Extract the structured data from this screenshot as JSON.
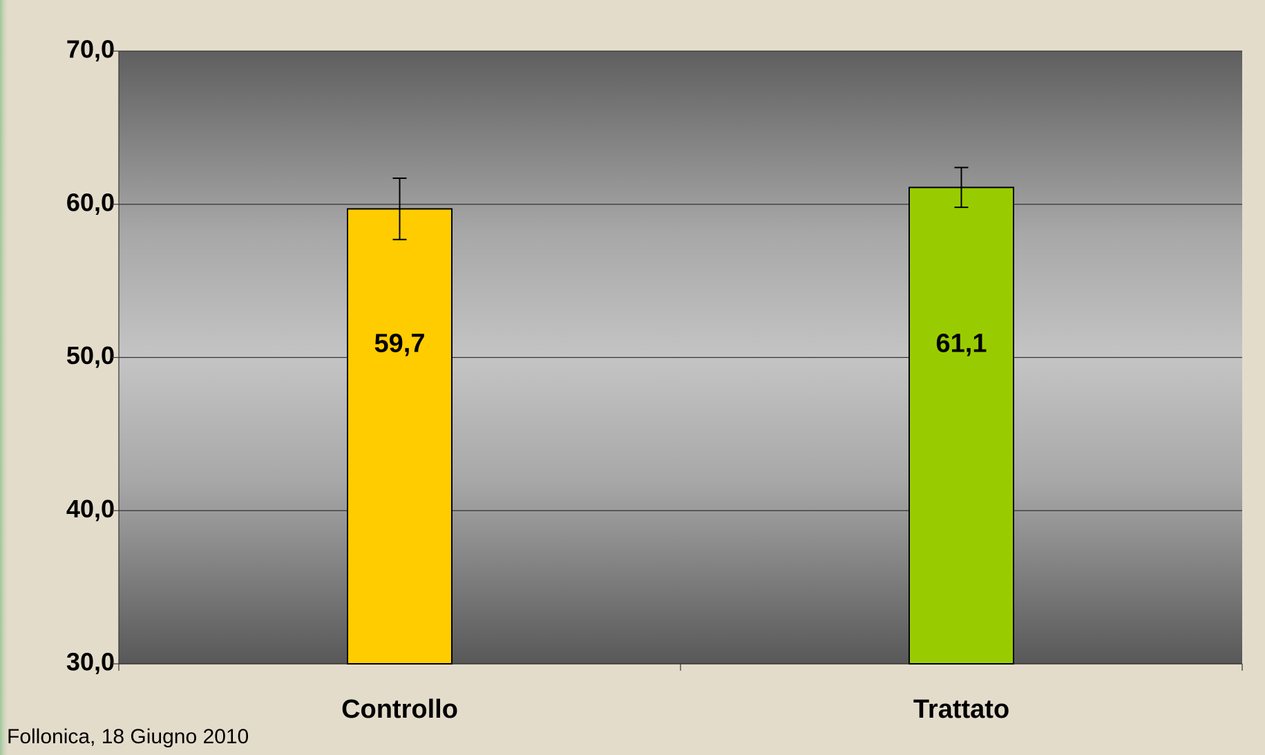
{
  "chart_data": {
    "type": "bar",
    "categories": [
      "Controllo",
      "Trattato"
    ],
    "values": [
      59.7,
      61.1
    ],
    "value_labels": [
      "59,7",
      "61,1"
    ],
    "errors": [
      2.0,
      1.3
    ],
    "colors": [
      "#ffcc00",
      "#99cc00"
    ],
    "ylim": [
      30,
      70
    ],
    "yticks": [
      {
        "value": 30,
        "label": "30,0"
      },
      {
        "value": 40,
        "label": "40,0"
      },
      {
        "value": 50,
        "label": "50,0"
      },
      {
        "value": 60,
        "label": "60,0"
      },
      {
        "value": 70,
        "label": "70,0"
      }
    ],
    "grid": true,
    "footer": "Follonica, 18 Giugno 2010"
  }
}
